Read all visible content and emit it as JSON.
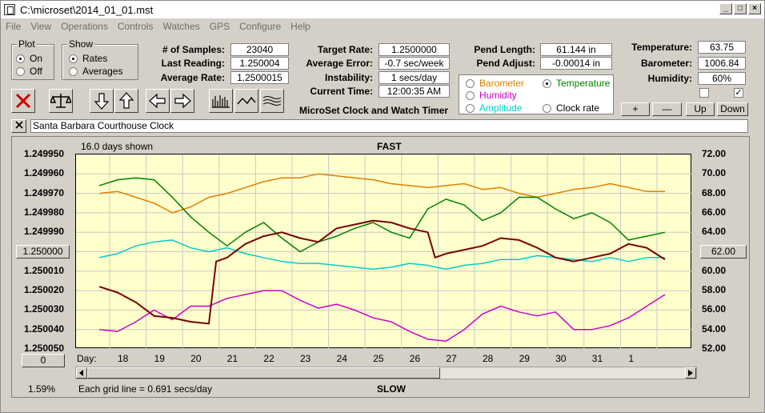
{
  "window": {
    "title": "C:\\microset\\2014_01_01.mst",
    "minimize": "_",
    "maximize": "□",
    "close": "×"
  },
  "menu": [
    "File",
    "View",
    "Operations",
    "Controls",
    "Watches",
    "GPS",
    "Configure",
    "Help"
  ],
  "plot_group": {
    "label": "Plot",
    "options": [
      "On",
      "Off"
    ],
    "selected": "On"
  },
  "show_group": {
    "label": "Show",
    "options": [
      "Rates",
      "Averages"
    ],
    "selected": "Rates"
  },
  "stats": {
    "samples_label": "# of Samples:",
    "samples_value": "23040",
    "last_reading_label": "Last Reading:",
    "last_reading_value": "1.250004",
    "avg_rate_label": "Average Rate:",
    "avg_rate_value": "1.2500015",
    "target_rate_label": "Target Rate:",
    "target_rate_value": "1.2500000",
    "avg_error_label": "Average Error:",
    "avg_error_value": "-0.7 sec/week",
    "instability_label": "Instability:",
    "instability_value": "1 secs/day",
    "current_time_label": "Current Time:",
    "current_time_value": "12:00:35 AM",
    "pend_length_label": "Pend Length:",
    "pend_length_value": "61.144 in",
    "pend_adjust_label": "Pend Adjust:",
    "pend_adjust_value": "-0.00014 in",
    "temperature_label": "Temperature:",
    "temperature_value": "63.75",
    "barometer_label": "Barometer:",
    "barometer_value": "1006.84",
    "humidity_label": "Humidity:",
    "humidity_value": "60%"
  },
  "app_subtitle": "MicroSet Clock and Watch Timer",
  "trace_options": [
    {
      "label": "Barometer",
      "color": "#e08000",
      "selected": false
    },
    {
      "label": "Temperature",
      "color": "#008000",
      "selected": true
    },
    {
      "label": "Humidity",
      "color": "#cc00cc",
      "selected": false
    },
    {
      "label": "Amplitude",
      "color": "#00cccc",
      "selected": false
    },
    {
      "label": "Clock rate",
      "color": "#000000",
      "selected": false
    }
  ],
  "scale_buttons": {
    "plus": "+",
    "minus": "—",
    "up": "Up",
    "down": "Down"
  },
  "checkboxes": [
    {
      "checked": false
    },
    {
      "checked": true
    }
  ],
  "clock_name": "Santa Barbara Courthouse Clock",
  "chart_labels": {
    "days_shown": "16.0 days shown",
    "fast": "FAST",
    "slow": "SLOW",
    "day_label": "Day:",
    "grid_note": "Each grid line = 0.691 secs/day",
    "percent": "1.59%",
    "left_box": "1.250000",
    "right_box": "62.00",
    "zero_box": "0"
  },
  "chart_data": {
    "type": "line",
    "x_tick_labels": [
      "18",
      "19",
      "20",
      "21",
      "22",
      "23",
      "24",
      "25",
      "26",
      "27",
      "28",
      "29",
      "30",
      "31",
      "1"
    ],
    "y_left_ticks": [
      "1.249950",
      "1.249960",
      "1.249970",
      "1.249980",
      "1.249990",
      "1.250000",
      "1.250010",
      "1.250020",
      "1.250030",
      "1.250040",
      "1.250050"
    ],
    "y_right_ticks": [
      "72.00",
      "70.00",
      "68.00",
      "66.00",
      "64.00",
      "62.00",
      "60.00",
      "58.00",
      "56.00",
      "54.00",
      "52.00"
    ],
    "y_left_lim": [
      1.24995,
      1.25005
    ],
    "y_right_lim": [
      52,
      72
    ],
    "series": [
      {
        "color": "#e08000",
        "axis": "left",
        "x": [
          0.0,
          0.5,
          1.0,
          1.5,
          2.0,
          2.5,
          3.0,
          3.5,
          4.0,
          4.5,
          5.0,
          5.5,
          6.0,
          6.5,
          7.0,
          7.5,
          8.0,
          8.5,
          9.0,
          9.5,
          10.0,
          10.5,
          11.0,
          11.5,
          12.0,
          12.5,
          13.0,
          13.5,
          14.0,
          14.5,
          15.0,
          15.5
        ],
        "y": [
          1.24997,
          1.249969,
          1.249972,
          1.249975,
          1.24998,
          1.249977,
          1.249972,
          1.24997,
          1.249967,
          1.249964,
          1.249962,
          1.249962,
          1.24996,
          1.249961,
          1.249962,
          1.249963,
          1.249965,
          1.249966,
          1.249967,
          1.249966,
          1.249965,
          1.249968,
          1.249967,
          1.24997,
          1.249972,
          1.24997,
          1.249968,
          1.249967,
          1.249965,
          1.249967,
          1.249969,
          1.249969
        ]
      },
      {
        "color": "#008000",
        "axis": "left",
        "x": [
          0.0,
          0.5,
          1.0,
          1.5,
          2.0,
          2.5,
          3.0,
          3.5,
          4.0,
          4.5,
          5.0,
          5.5,
          6.0,
          6.5,
          7.0,
          7.5,
          8.0,
          8.5,
          9.0,
          9.5,
          10.0,
          10.5,
          11.0,
          11.5,
          12.0,
          12.5,
          13.0,
          13.5,
          14.0,
          14.5,
          15.0,
          15.5
        ],
        "y": [
          1.249966,
          1.249963,
          1.249962,
          1.249963,
          1.249972,
          1.249982,
          1.24999,
          1.249997,
          1.24999,
          1.249985,
          1.249993,
          1.25,
          1.249995,
          1.249992,
          1.249988,
          1.249985,
          1.24999,
          1.249993,
          1.249978,
          1.249973,
          1.249976,
          1.249984,
          1.24998,
          1.249972,
          1.249972,
          1.249978,
          1.249983,
          1.24998,
          1.249985,
          1.249994,
          1.249992,
          1.24999
        ]
      },
      {
        "color": "#cc00cc",
        "axis": "left",
        "x": [
          0.0,
          0.5,
          1.0,
          1.5,
          2.0,
          2.5,
          3.0,
          3.5,
          4.0,
          4.5,
          5.0,
          5.5,
          6.0,
          6.5,
          7.0,
          7.5,
          8.0,
          8.5,
          9.0,
          9.5,
          10.0,
          10.5,
          11.0,
          11.5,
          12.0,
          12.5,
          13.0,
          13.5,
          14.0,
          14.5,
          15.0,
          15.5
        ],
        "y": [
          1.25004,
          1.250041,
          1.250036,
          1.25003,
          1.250035,
          1.250028,
          1.250028,
          1.250024,
          1.250022,
          1.25002,
          1.25002,
          1.250025,
          1.250029,
          1.250027,
          1.25003,
          1.250034,
          1.250036,
          1.250041,
          1.250045,
          1.250046,
          1.25004,
          1.250032,
          1.250028,
          1.250031,
          1.250033,
          1.250031,
          1.25004,
          1.25004,
          1.250038,
          1.250034,
          1.250028,
          1.250022
        ]
      },
      {
        "color": "#00cccc",
        "axis": "left",
        "x": [
          0.0,
          0.5,
          1.0,
          1.5,
          2.0,
          2.5,
          3.0,
          3.5,
          4.0,
          4.5,
          5.0,
          5.5,
          6.0,
          6.5,
          7.0,
          7.5,
          8.0,
          8.5,
          9.0,
          9.5,
          10.0,
          10.5,
          11.0,
          11.5,
          12.0,
          12.5,
          13.0,
          13.5,
          14.0,
          14.5,
          15.0,
          15.5
        ],
        "y": [
          1.250003,
          1.250001,
          1.249997,
          1.249995,
          1.249994,
          1.249998,
          1.25,
          1.249998,
          1.250001,
          1.250003,
          1.250005,
          1.250006,
          1.250006,
          1.250007,
          1.250008,
          1.250009,
          1.250008,
          1.250006,
          1.250007,
          1.250009,
          1.250007,
          1.250006,
          1.250004,
          1.250004,
          1.250002,
          1.250003,
          1.250004,
          1.250005,
          1.250003,
          1.250005,
          1.250003,
          1.250003
        ]
      },
      {
        "color": "#7a0000",
        "axis": "left",
        "x": [
          0.0,
          0.5,
          1.0,
          1.5,
          2.0,
          2.5,
          3.0,
          3.2,
          3.5,
          4.0,
          4.5,
          5.0,
          5.5,
          6.0,
          6.5,
          7.0,
          7.5,
          8.0,
          8.5,
          9.0,
          9.2,
          9.5,
          10.0,
          10.5,
          11.0,
          11.5,
          12.0,
          12.5,
          13.0,
          13.5,
          14.0,
          14.5,
          15.0,
          15.5
        ],
        "y": [
          1.250018,
          1.250021,
          1.250026,
          1.250033,
          1.250034,
          1.250036,
          1.250037,
          1.250005,
          1.250003,
          1.249996,
          1.249992,
          1.24999,
          1.249993,
          1.249995,
          1.249988,
          1.249986,
          1.249984,
          1.249985,
          1.249988,
          1.24999,
          1.250003,
          1.250001,
          1.249999,
          1.249997,
          1.249993,
          1.249994,
          1.249998,
          1.250003,
          1.250005,
          1.250003,
          1.250001,
          1.249996,
          1.249998,
          1.250004
        ]
      }
    ]
  }
}
